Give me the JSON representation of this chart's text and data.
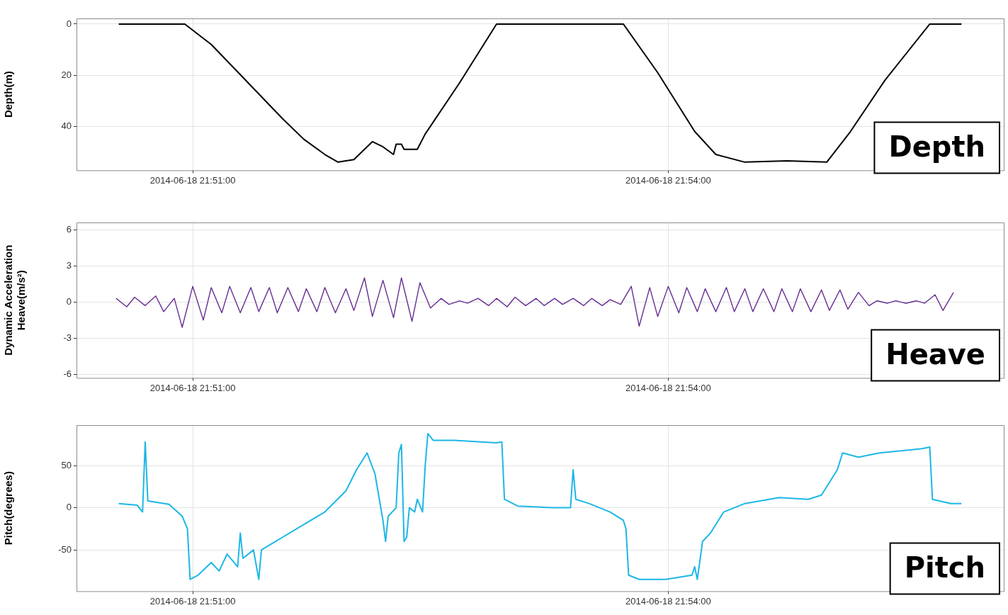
{
  "chart_data": [
    {
      "type": "line",
      "ylabel": "Depth(m)",
      "color": "#000000",
      "grid": true,
      "annotations": [
        "Depth"
      ],
      "xlim": [
        "2014-06-18T21:50:16",
        "2014-06-18T21:56:07"
      ],
      "xticks": [
        {
          "value": "2014-06-18T21:51:00",
          "label": "2014-06-18 21:51:00"
        },
        {
          "value": "2014-06-18T21:54:00",
          "label": "2014-06-18 21:54:00"
        }
      ],
      "ylim": [
        57.2,
        -2.2
      ],
      "yticks": [
        0,
        20,
        40
      ],
      "x": [
        "2014-06-18T21:50:32",
        "2014-06-18T21:50:57",
        "2014-06-18T21:51:07",
        "2014-06-18T21:51:21",
        "2014-06-18T21:51:34",
        "2014-06-18T21:51:42",
        "2014-06-18T21:51:50",
        "2014-06-18T21:51:55",
        "2014-06-18T21:52:01",
        "2014-06-18T21:52:05",
        "2014-06-18T21:52:08",
        "2014-06-18T21:52:12",
        "2014-06-18T21:52:16",
        "2014-06-18T21:52:17",
        "2014-06-18T21:52:19",
        "2014-06-18T21:52:20",
        "2014-06-18T21:52:25",
        "2014-06-18T21:52:28",
        "2014-06-18T21:52:41",
        "2014-06-18T21:52:55",
        "2014-06-18T21:53:43",
        "2014-06-18T21:53:56",
        "2014-06-18T21:54:10",
        "2014-06-18T21:54:18",
        "2014-06-18T21:54:29",
        "2014-06-18T21:54:45",
        "2014-06-18T21:55:00",
        "2014-06-18T21:55:09",
        "2014-06-18T21:55:22",
        "2014-06-18T21:55:39",
        "2014-06-18T21:55:51"
      ],
      "values": [
        0,
        0,
        8,
        23,
        37,
        45,
        51,
        54,
        53,
        49,
        46,
        48,
        51,
        47,
        47,
        49,
        49,
        43,
        23,
        0,
        0,
        19,
        42,
        51,
        54,
        53.5,
        54,
        42,
        22,
        0,
        0
      ]
    },
    {
      "type": "line",
      "ylabel": "Dynamic Acceleration Heave(m/s²)",
      "color": "#662d91",
      "grid": true,
      "annotations": [
        "Heave"
      ],
      "xlim": [
        "2014-06-18T21:50:16",
        "2014-06-18T21:56:07"
      ],
      "xticks": [
        {
          "value": "2014-06-18T21:51:00",
          "label": "2014-06-18 21:51:00"
        },
        {
          "value": "2014-06-18T21:54:00",
          "label": "2014-06-18 21:54:00"
        }
      ],
      "ylim": [
        -6.3,
        6.6
      ],
      "yticks": [
        -6,
        -3,
        0,
        3,
        6
      ],
      "x": [
        "2014-06-18T21:50:31",
        "2014-06-18T21:50:35",
        "2014-06-18T21:50:38",
        "2014-06-18T21:50:42",
        "2014-06-18T21:50:46",
        "2014-06-18T21:50:49",
        "2014-06-18T21:50:53",
        "2014-06-18T21:50:56",
        "2014-06-18T21:51:00",
        "2014-06-18T21:51:04",
        "2014-06-18T21:51:07",
        "2014-06-18T21:51:11",
        "2014-06-18T21:51:14",
        "2014-06-18T21:51:18",
        "2014-06-18T21:51:22",
        "2014-06-18T21:51:25",
        "2014-06-18T21:51:29",
        "2014-06-18T21:51:32",
        "2014-06-18T21:51:36",
        "2014-06-18T21:51:40",
        "2014-06-18T21:51:43",
        "2014-06-18T21:51:47",
        "2014-06-18T21:51:50",
        "2014-06-18T21:51:54",
        "2014-06-18T21:51:58",
        "2014-06-18T21:52:01",
        "2014-06-18T21:52:05",
        "2014-06-18T21:52:08",
        "2014-06-18T21:52:12",
        "2014-06-18T21:52:16",
        "2014-06-18T21:52:19",
        "2014-06-18T21:52:23",
        "2014-06-18T21:52:26",
        "2014-06-18T21:52:30",
        "2014-06-18T21:52:34",
        "2014-06-18T21:52:37",
        "2014-06-18T21:52:41",
        "2014-06-18T21:52:44",
        "2014-06-18T21:52:48",
        "2014-06-18T21:52:52",
        "2014-06-18T21:52:55",
        "2014-06-18T21:52:59",
        "2014-06-18T21:53:02",
        "2014-06-18T21:53:06",
        "2014-06-18T21:53:10",
        "2014-06-18T21:53:13",
        "2014-06-18T21:53:17",
        "2014-06-18T21:53:20",
        "2014-06-18T21:53:24",
        "2014-06-18T21:53:28",
        "2014-06-18T21:53:31",
        "2014-06-18T21:53:35",
        "2014-06-18T21:53:38",
        "2014-06-18T21:53:42",
        "2014-06-18T21:53:46",
        "2014-06-18T21:53:49",
        "2014-06-18T21:53:53",
        "2014-06-18T21:53:56",
        "2014-06-18T21:54:00",
        "2014-06-18T21:54:04",
        "2014-06-18T21:54:07",
        "2014-06-18T21:54:11",
        "2014-06-18T21:54:14",
        "2014-06-18T21:54:18",
        "2014-06-18T21:54:22",
        "2014-06-18T21:54:25",
        "2014-06-18T21:54:29",
        "2014-06-18T21:54:32",
        "2014-06-18T21:54:36",
        "2014-06-18T21:54:40",
        "2014-06-18T21:54:43",
        "2014-06-18T21:54:47",
        "2014-06-18T21:54:50",
        "2014-06-18T21:54:54",
        "2014-06-18T21:54:58",
        "2014-06-18T21:55:01",
        "2014-06-18T21:55:05",
        "2014-06-18T21:55:08",
        "2014-06-18T21:55:12",
        "2014-06-18T21:55:16",
        "2014-06-18T21:55:19",
        "2014-06-18T21:55:23",
        "2014-06-18T21:55:26",
        "2014-06-18T21:55:30",
        "2014-06-18T21:55:34",
        "2014-06-18T21:55:37",
        "2014-06-18T21:55:41",
        "2014-06-18T21:55:44",
        "2014-06-18T21:55:48"
      ],
      "values": [
        0.3,
        -0.4,
        0.4,
        -0.3,
        0.5,
        -0.8,
        0.3,
        -2.1,
        1.3,
        -1.5,
        1.2,
        -0.9,
        1.3,
        -0.9,
        1.2,
        -0.8,
        1.2,
        -0.9,
        1.2,
        -0.8,
        1.1,
        -0.8,
        1.2,
        -0.9,
        1.1,
        -0.7,
        2,
        -1.2,
        1.8,
        -1.3,
        2,
        -1.6,
        1.6,
        -0.5,
        0.3,
        -0.2,
        0.1,
        -0.1,
        0.3,
        -0.3,
        0.3,
        -0.4,
        0.4,
        -0.3,
        0.3,
        -0.3,
        0.3,
        -0.2,
        0.3,
        -0.3,
        0.3,
        -0.3,
        0.2,
        -0.2,
        1.3,
        -2,
        1.2,
        -1.2,
        1.3,
        -0.9,
        1.2,
        -0.8,
        1.1,
        -0.8,
        1.2,
        -0.8,
        1.1,
        -0.8,
        1.1,
        -0.8,
        1.1,
        -0.8,
        1.1,
        -0.8,
        1,
        -0.7,
        1,
        -0.6,
        0.8,
        -0.3,
        0.1,
        -0.1,
        0.1,
        -0.1,
        0.1,
        -0.1,
        0.6,
        -0.7,
        0.8
      ]
    },
    {
      "type": "line",
      "ylabel": "Pitch(degrees)",
      "color": "#1db7e6",
      "grid": true,
      "annotations": [
        "Pitch"
      ],
      "xlim": [
        "2014-06-18T21:50:16",
        "2014-06-18T21:56:07"
      ],
      "xticks": [
        {
          "value": "2014-06-18T21:51:00",
          "label": "2014-06-18 21:51:00"
        },
        {
          "value": "2014-06-18T21:54:00",
          "label": "2014-06-18 21:54:00"
        }
      ],
      "ylim": [
        -99,
        98
      ],
      "yticks": [
        -50,
        0,
        50
      ],
      "x": [
        "2014-06-18T21:50:32",
        "2014-06-18T21:50:39",
        "2014-06-18T21:50:41",
        "2014-06-18T21:50:42",
        "2014-06-18T21:50:43",
        "2014-06-18T21:50:51",
        "2014-06-18T21:50:56",
        "2014-06-18T21:50:58",
        "2014-06-18T21:50:59",
        "2014-06-18T21:51:02",
        "2014-06-18T21:51:07",
        "2014-06-18T21:51:10",
        "2014-06-18T21:51:13",
        "2014-06-18T21:51:17",
        "2014-06-18T21:51:18",
        "2014-06-18T21:51:19",
        "2014-06-18T21:51:23",
        "2014-06-18T21:51:25",
        "2014-06-18T21:51:26",
        "2014-06-18T21:51:34",
        "2014-06-18T21:51:42",
        "2014-06-18T21:51:50",
        "2014-06-18T21:51:58",
        "2014-06-18T21:52:02",
        "2014-06-18T21:52:06",
        "2014-06-18T21:52:09",
        "2014-06-18T21:52:12",
        "2014-06-18T21:52:13",
        "2014-06-18T21:52:14",
        "2014-06-18T21:52:17",
        "2014-06-18T21:52:18",
        "2014-06-18T21:52:19",
        "2014-06-18T21:52:20",
        "2014-06-18T21:52:21",
        "2014-06-18T21:52:22",
        "2014-06-18T21:52:24",
        "2014-06-18T21:52:25",
        "2014-06-18T21:52:27",
        "2014-06-18T21:52:28",
        "2014-06-18T21:52:29",
        "2014-06-18T21:52:31",
        "2014-06-18T21:52:39",
        "2014-06-18T21:52:55",
        "2014-06-18T21:52:57",
        "2014-06-18T21:52:58",
        "2014-06-18T21:53:03",
        "2014-06-18T21:53:16",
        "2014-06-18T21:53:23",
        "2014-06-18T21:53:24",
        "2014-06-18T21:53:25",
        "2014-06-18T21:53:30",
        "2014-06-18T21:53:38",
        "2014-06-18T21:53:43",
        "2014-06-18T21:53:44",
        "2014-06-18T21:53:45",
        "2014-06-18T21:53:49",
        "2014-06-18T21:53:59",
        "2014-06-18T21:54:09",
        "2014-06-18T21:54:10",
        "2014-06-18T21:54:11",
        "2014-06-18T21:54:13",
        "2014-06-18T21:54:16",
        "2014-06-18T21:54:21",
        "2014-06-18T21:54:29",
        "2014-06-18T21:54:42",
        "2014-06-18T21:54:53",
        "2014-06-18T21:54:58",
        "2014-06-18T21:55:04",
        "2014-06-18T21:55:06",
        "2014-06-18T21:55:12",
        "2014-06-18T21:55:20",
        "2014-06-18T21:55:36",
        "2014-06-18T21:55:39",
        "2014-06-18T21:55:40",
        "2014-06-18T21:55:47",
        "2014-06-18T21:55:51"
      ],
      "values": [
        5,
        3,
        -5,
        78,
        8,
        4,
        -10,
        -25,
        -85,
        -80,
        -65,
        -75,
        -55,
        -70,
        -30,
        -60,
        -50,
        -85,
        -50,
        -35,
        -20,
        -5,
        20,
        45,
        65,
        40,
        -15,
        -40,
        -10,
        0,
        65,
        75,
        -40,
        -35,
        0,
        -5,
        10,
        -5,
        50,
        88,
        80,
        80,
        77,
        78,
        10,
        2,
        0,
        0,
        45,
        10,
        5,
        -5,
        -15,
        -25,
        -80,
        -85,
        -85,
        -80,
        -70,
        -85,
        -40,
        -30,
        -5,
        5,
        12,
        10,
        15,
        45,
        65,
        60,
        65,
        70,
        72,
        10,
        5,
        5
      ]
    }
  ]
}
